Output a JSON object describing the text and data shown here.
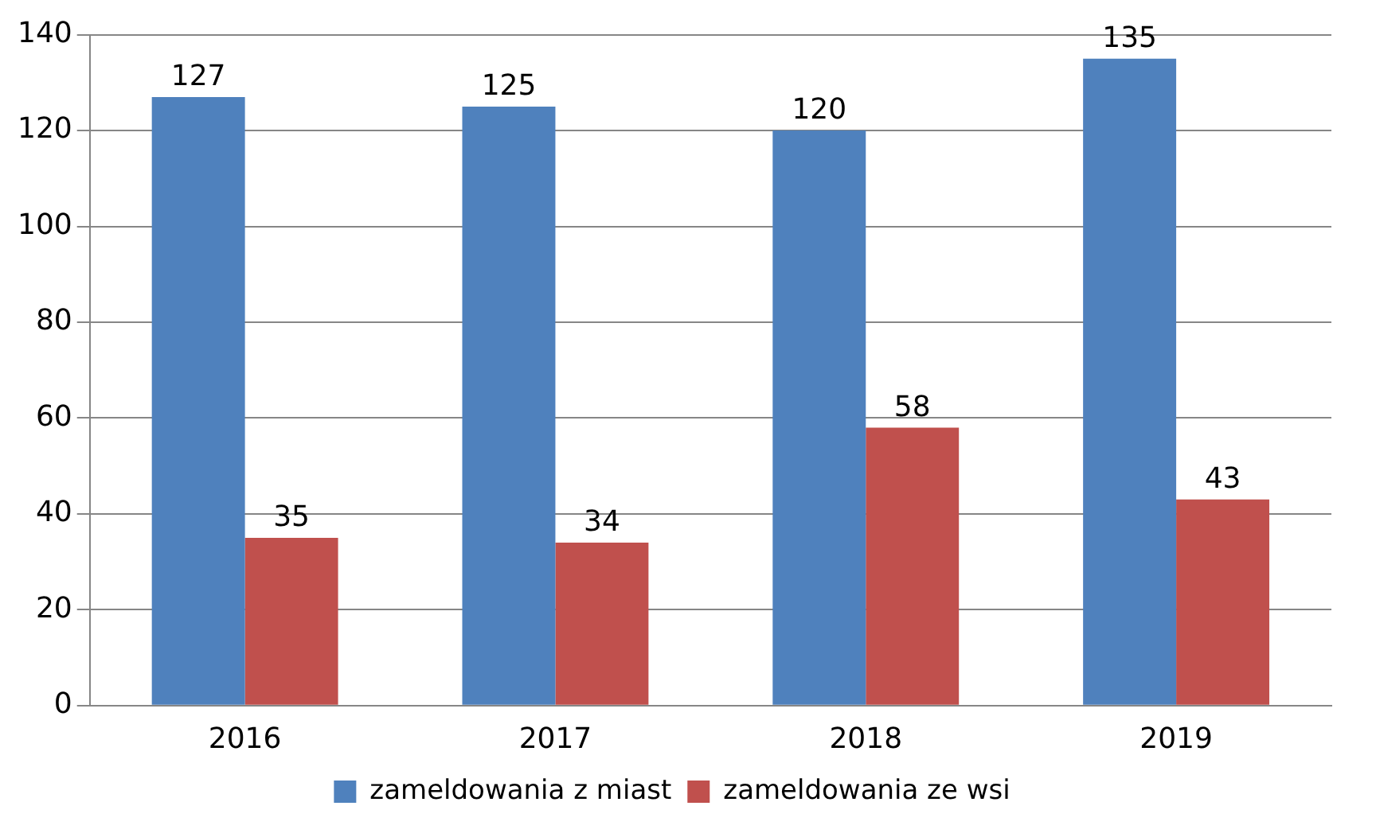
{
  "chart_data": {
    "type": "bar",
    "categories": [
      "2016",
      "2017",
      "2018",
      "2019"
    ],
    "series": [
      {
        "name": "zameldowania z miast",
        "color": "#4f81bd",
        "values": [
          127,
          125,
          120,
          135
        ]
      },
      {
        "name": "zameldowania ze wsi",
        "color": "#c0504d",
        "values": [
          35,
          34,
          58,
          43
        ]
      }
    ],
    "ylim": [
      0,
      140
    ],
    "yticks": [
      0,
      20,
      40,
      60,
      80,
      100,
      120,
      140
    ],
    "grid": "y",
    "legend": "bottom",
    "data_labels": true
  }
}
